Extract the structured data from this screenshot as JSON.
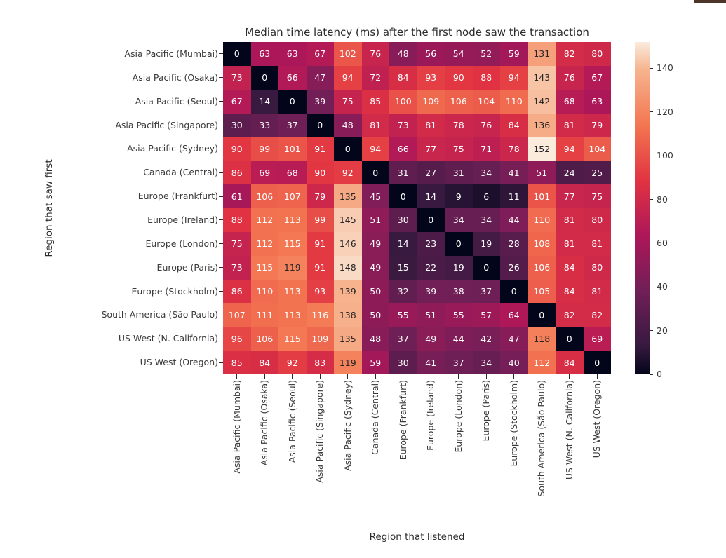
{
  "page": {
    "background": "#ffffff",
    "window_edge_strip_color": "#4e352a"
  },
  "chart_data": {
    "type": "heatmap",
    "title": "Median time latency (ms) after the first node saw the transaction",
    "xlabel": "Region that listened",
    "ylabel": "Region that saw first",
    "x_categories": [
      "Asia Pacific (Mumbai)",
      "Asia Pacific (Osaka)",
      "Asia Pacific (Seoul)",
      "Asia Pacific (Singapore)",
      "Asia Pacific (Sydney)",
      "Canada (Central)",
      "Europe (Frankfurt)",
      "Europe (Ireland)",
      "Europe (London)",
      "Europe (Paris)",
      "Europe (Stockholm)",
      "South America (São Paulo)",
      "US West (N. California)",
      "US West (Oregon)"
    ],
    "y_categories": [
      "Asia Pacific (Mumbai)",
      "Asia Pacific (Osaka)",
      "Asia Pacific (Seoul)",
      "Asia Pacific (Singapore)",
      "Asia Pacific (Sydney)",
      "Canada (Central)",
      "Europe (Frankfurt)",
      "Europe (Ireland)",
      "Europe (London)",
      "Europe (Paris)",
      "Europe (Stockholm)",
      "South America (São Paulo)",
      "US West (N. California)",
      "US West (Oregon)"
    ],
    "values": [
      [
        0,
        63,
        63,
        67,
        102,
        76,
        48,
        56,
        54,
        52,
        59,
        131,
        82,
        80
      ],
      [
        73,
        0,
        66,
        47,
        94,
        72,
        84,
        93,
        90,
        88,
        94,
        143,
        76,
        67
      ],
      [
        67,
        14,
        0,
        39,
        75,
        85,
        100,
        109,
        106,
        104,
        110,
        142,
        68,
        63
      ],
      [
        30,
        33,
        37,
        0,
        48,
        81,
        73,
        81,
        78,
        76,
        84,
        136,
        81,
        79
      ],
      [
        90,
        99,
        101,
        91,
        0,
        94,
        66,
        77,
        75,
        71,
        78,
        152,
        94,
        104
      ],
      [
        86,
        69,
        68,
        90,
        92,
        0,
        31,
        27,
        31,
        34,
        41,
        51,
        24,
        25
      ],
      [
        61,
        106,
        107,
        79,
        135,
        45,
        0,
        14,
        9,
        6,
        11,
        101,
        77,
        75
      ],
      [
        88,
        112,
        113,
        99,
        145,
        51,
        30,
        0,
        34,
        34,
        44,
        110,
        81,
        80
      ],
      [
        75,
        112,
        115,
        91,
        146,
        49,
        14,
        23,
        0,
        19,
        28,
        108,
        81,
        81
      ],
      [
        73,
        115,
        119,
        91,
        148,
        49,
        15,
        22,
        19,
        0,
        26,
        106,
        84,
        80
      ],
      [
        86,
        110,
        113,
        93,
        139,
        50,
        32,
        39,
        38,
        37,
        0,
        105,
        84,
        81
      ],
      [
        107,
        111,
        113,
        116,
        138,
        50,
        55,
        51,
        55,
        57,
        64,
        0,
        82,
        82
      ],
      [
        96,
        106,
        115,
        109,
        135,
        48,
        37,
        49,
        44,
        42,
        47,
        118,
        0,
        69
      ],
      [
        85,
        84,
        92,
        83,
        119,
        59,
        30,
        41,
        37,
        34,
        40,
        112,
        84,
        0
      ]
    ],
    "vmin": 0,
    "vmax": 152,
    "colormap": "rocket",
    "colormap_anchors": [
      [
        0.0,
        3,
        5,
        26
      ],
      [
        0.083,
        53,
        25,
        62
      ],
      [
        0.25,
        112,
        31,
        87
      ],
      [
        0.417,
        173,
        23,
        89
      ],
      [
        0.583,
        225,
        51,
        66
      ],
      [
        0.75,
        243,
        118,
        81
      ],
      [
        0.917,
        246,
        180,
        143
      ],
      [
        1.0,
        250,
        235,
        221
      ]
    ],
    "annotation_colors": {
      "on_dark": "#ffffff",
      "on_light": "#262626"
    },
    "colorbar_ticks": [
      0,
      20,
      40,
      60,
      80,
      100,
      120,
      140
    ],
    "legend_position": "right",
    "grid": false
  }
}
